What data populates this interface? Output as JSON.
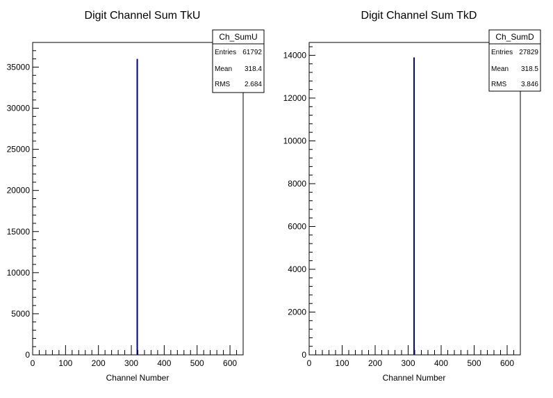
{
  "colors": {
    "histogram": "#000080",
    "axis": "#000000",
    "background": "#ffffff"
  },
  "chart_data": [
    {
      "type": "bar",
      "title": "Digit Channel Sum TkU",
      "xlabel": "Channel Number",
      "ylabel": "",
      "xlim": [
        0,
        640
      ],
      "ylim": [
        0,
        38000
      ],
      "xticks": [
        "0",
        "100",
        "200",
        "300",
        "400",
        "500",
        "600"
      ],
      "yticks": [
        "0",
        "5000",
        "10000",
        "15000",
        "20000",
        "25000",
        "30000",
        "35000"
      ],
      "x": [
        318
      ],
      "values": [
        36000
      ],
      "stats": {
        "name": "Ch_SumU",
        "entries_label": "Entries",
        "entries": "61792",
        "mean_label": "Mean",
        "mean": "318.4",
        "rms_label": "RMS",
        "rms": "2.684"
      }
    },
    {
      "type": "bar",
      "title": "Digit Channel Sum TkD",
      "xlabel": "Channel Number",
      "ylabel": "",
      "xlim": [
        0,
        640
      ],
      "ylim": [
        0,
        14600
      ],
      "xticks": [
        "0",
        "100",
        "200",
        "300",
        "400",
        "500",
        "600"
      ],
      "yticks": [
        "0",
        "2000",
        "4000",
        "6000",
        "8000",
        "10000",
        "12000",
        "14000"
      ],
      "x": [
        318
      ],
      "values": [
        13900
      ],
      "stats": {
        "name": "Ch_SumD",
        "entries_label": "Entries",
        "entries": "27829",
        "mean_label": "Mean",
        "mean": "318.5",
        "rms_label": "RMS",
        "rms": "3.846"
      }
    }
  ]
}
